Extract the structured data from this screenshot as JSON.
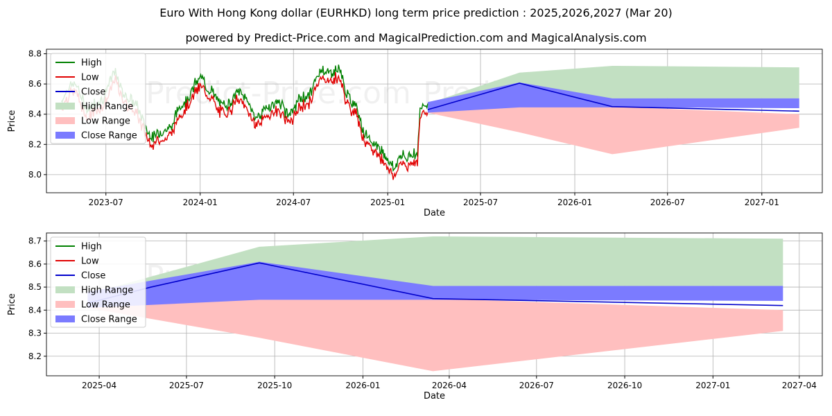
{
  "title": "Euro With Hong Kong dollar (EURHKD) long term price prediction : 2025,2026,2027 (Mar 20)",
  "subtitle": "powered by Predict-Price.com and MagicalPrediction.com and MagicalAnalysis.com",
  "watermark": "Predict-Price.com",
  "colors": {
    "high": "#008000",
    "low": "#e00000",
    "close": "#0000cc",
    "high_range": "#c2e0c2",
    "low_range": "#ffbfbf",
    "close_range": "#7b7bff"
  },
  "legend": [
    "High",
    "Low",
    "Close",
    "High Range",
    "Low Range",
    "Close Range"
  ],
  "chart_data": [
    {
      "type": "line",
      "panel": "top",
      "xlabel": "Date",
      "ylabel": "Price",
      "xlim": [
        "2023-03-07",
        "2027-04-29"
      ],
      "ylim": [
        7.88,
        8.83
      ],
      "yticks": [
        8.0,
        8.2,
        8.4,
        8.6,
        8.8
      ],
      "xticks": [
        {
          "date": "2023-07-01",
          "label": "2023-07"
        },
        {
          "date": "2024-01-01",
          "label": "2024-01"
        },
        {
          "date": "2024-07-01",
          "label": "2024-07"
        },
        {
          "date": "2025-01-01",
          "label": "2025-01"
        },
        {
          "date": "2025-07-01",
          "label": "2025-07"
        },
        {
          "date": "2026-01-01",
          "label": "2026-01"
        },
        {
          "date": "2026-07-01",
          "label": "2026-07"
        },
        {
          "date": "2027-01-01",
          "label": "2027-01"
        }
      ],
      "history_close": [
        [
          "2023-04-05",
          8.46
        ],
        [
          "2023-04-20",
          8.56
        ],
        [
          "2023-05-05",
          8.57
        ],
        [
          "2023-05-15",
          8.47
        ],
        [
          "2023-05-28",
          8.4
        ],
        [
          "2023-06-10",
          8.45
        ],
        [
          "2023-06-24",
          8.47
        ],
        [
          "2023-07-05",
          8.55
        ],
        [
          "2023-07-18",
          8.66
        ],
        [
          "2023-07-28",
          8.56
        ],
        [
          "2023-08-08",
          8.5
        ],
        [
          "2023-08-20",
          8.46
        ],
        [
          "2023-08-31",
          8.43
        ],
        [
          "2023-09-10",
          8.34
        ],
        [
          "2023-09-22",
          8.25
        ],
        [
          "2023-10-03",
          8.22
        ],
        [
          "2023-10-15",
          8.26
        ],
        [
          "2023-10-28",
          8.27
        ],
        [
          "2023-11-08",
          8.3
        ],
        [
          "2023-11-20",
          8.42
        ],
        [
          "2023-12-01",
          8.45
        ],
        [
          "2023-12-12",
          8.5
        ],
        [
          "2023-12-22",
          8.57
        ],
        [
          "2024-01-02",
          8.62
        ],
        [
          "2024-01-12",
          8.56
        ],
        [
          "2024-01-25",
          8.52
        ],
        [
          "2024-02-05",
          8.45
        ],
        [
          "2024-02-18",
          8.43
        ],
        [
          "2024-03-01",
          8.46
        ],
        [
          "2024-03-12",
          8.52
        ],
        [
          "2024-03-25",
          8.5
        ],
        [
          "2024-04-05",
          8.45
        ],
        [
          "2024-04-16",
          8.35
        ],
        [
          "2024-04-28",
          8.37
        ],
        [
          "2024-05-10",
          8.42
        ],
        [
          "2024-05-22",
          8.43
        ],
        [
          "2024-06-03",
          8.46
        ],
        [
          "2024-06-15",
          8.39
        ],
        [
          "2024-06-28",
          8.38
        ],
        [
          "2024-07-10",
          8.46
        ],
        [
          "2024-07-22",
          8.49
        ],
        [
          "2024-08-02",
          8.5
        ],
        [
          "2024-08-14",
          8.6
        ],
        [
          "2024-08-26",
          8.68
        ],
        [
          "2024-09-06",
          8.64
        ],
        [
          "2024-09-18",
          8.66
        ],
        [
          "2024-09-30",
          8.67
        ],
        [
          "2024-10-10",
          8.53
        ],
        [
          "2024-10-22",
          8.45
        ],
        [
          "2024-11-02",
          8.43
        ],
        [
          "2024-11-14",
          8.27
        ],
        [
          "2024-11-26",
          8.19
        ],
        [
          "2024-12-08",
          8.18
        ],
        [
          "2024-12-20",
          8.13
        ],
        [
          "2025-01-01",
          8.08
        ],
        [
          "2025-01-13",
          8.01
        ],
        [
          "2025-01-25",
          8.1
        ],
        [
          "2025-02-06",
          8.08
        ],
        [
          "2025-02-18",
          8.12
        ],
        [
          "2025-02-28",
          8.11
        ],
        [
          "2025-03-05",
          8.39
        ],
        [
          "2025-03-12",
          8.44
        ],
        [
          "2025-03-20",
          8.44
        ]
      ],
      "forecast_close": [
        [
          "2025-03-20",
          8.43
        ],
        [
          "2025-09-15",
          8.605
        ],
        [
          "2026-03-15",
          8.45
        ],
        [
          "2027-03-15",
          8.42
        ]
      ],
      "high_range_upper": [
        [
          "2025-03-20",
          8.47
        ],
        [
          "2025-09-15",
          8.675
        ],
        [
          "2026-03-15",
          8.72
        ],
        [
          "2027-03-15",
          8.71
        ]
      ],
      "high_range_lower": [
        [
          "2025-03-20",
          8.43
        ],
        [
          "2025-09-15",
          8.45
        ],
        [
          "2026-03-15",
          8.505
        ],
        [
          "2027-03-15",
          8.505
        ]
      ],
      "low_range_upper": [
        [
          "2025-03-20",
          8.42
        ],
        [
          "2025-09-15",
          8.45
        ],
        [
          "2026-03-15",
          8.45
        ],
        [
          "2027-03-15",
          8.4
        ]
      ],
      "low_range_lower": [
        [
          "2025-03-20",
          8.41
        ],
        [
          "2025-09-15",
          8.28
        ],
        [
          "2026-03-15",
          8.135
        ],
        [
          "2027-03-15",
          8.31
        ]
      ],
      "close_range_upper": [
        [
          "2025-03-20",
          8.48
        ],
        [
          "2025-09-15",
          8.61
        ],
        [
          "2026-03-15",
          8.505
        ],
        [
          "2027-03-15",
          8.505
        ]
      ],
      "close_range_lower": [
        [
          "2025-03-20",
          8.41
        ],
        [
          "2025-09-15",
          8.445
        ],
        [
          "2026-03-15",
          8.445
        ],
        [
          "2027-03-15",
          8.44
        ]
      ]
    },
    {
      "type": "area",
      "panel": "bottom",
      "xlabel": "Date",
      "ylabel": "Price",
      "xlim": [
        "2025-02-05",
        "2027-04-25"
      ],
      "ylim": [
        8.115,
        8.735
      ],
      "yticks": [
        8.2,
        8.3,
        8.4,
        8.5,
        8.6,
        8.7
      ],
      "xticks": [
        {
          "date": "2025-04-01",
          "label": "2025-04"
        },
        {
          "date": "2025-07-01",
          "label": "2025-07"
        },
        {
          "date": "2025-10-01",
          "label": "2025-10"
        },
        {
          "date": "2026-01-01",
          "label": "2026-01"
        },
        {
          "date": "2026-04-01",
          "label": "2026-04"
        },
        {
          "date": "2026-07-01",
          "label": "2026-07"
        },
        {
          "date": "2026-10-01",
          "label": "2026-10"
        },
        {
          "date": "2027-01-01",
          "label": "2027-01"
        },
        {
          "date": "2027-04-01",
          "label": "2027-04"
        }
      ],
      "forecast_close": [
        [
          "2025-03-20",
          8.43
        ],
        [
          "2025-05-25",
          8.5
        ],
        [
          "2025-09-15",
          8.605
        ],
        [
          "2026-03-15",
          8.45
        ],
        [
          "2027-03-15",
          8.42
        ]
      ],
      "high_range_upper": [
        [
          "2025-03-20",
          8.47
        ],
        [
          "2025-09-15",
          8.675
        ],
        [
          "2026-03-15",
          8.72
        ],
        [
          "2027-03-15",
          8.71
        ]
      ],
      "high_range_lower": [
        [
          "2025-03-20",
          8.43
        ],
        [
          "2025-09-15",
          8.45
        ],
        [
          "2026-03-15",
          8.505
        ],
        [
          "2027-03-15",
          8.505
        ]
      ],
      "low_range_upper": [
        [
          "2025-03-20",
          8.42
        ],
        [
          "2025-09-15",
          8.45
        ],
        [
          "2026-03-15",
          8.45
        ],
        [
          "2027-03-15",
          8.4
        ]
      ],
      "low_range_lower": [
        [
          "2025-03-20",
          8.41
        ],
        [
          "2025-09-15",
          8.28
        ],
        [
          "2026-03-15",
          8.135
        ],
        [
          "2027-03-15",
          8.31
        ]
      ],
      "close_range_upper": [
        [
          "2025-03-20",
          8.48
        ],
        [
          "2025-09-15",
          8.61
        ],
        [
          "2026-03-15",
          8.505
        ],
        [
          "2027-03-15",
          8.505
        ]
      ],
      "close_range_lower": [
        [
          "2025-03-20",
          8.41
        ],
        [
          "2025-09-15",
          8.445
        ],
        [
          "2026-03-15",
          8.445
        ],
        [
          "2027-03-15",
          8.44
        ]
      ]
    }
  ]
}
